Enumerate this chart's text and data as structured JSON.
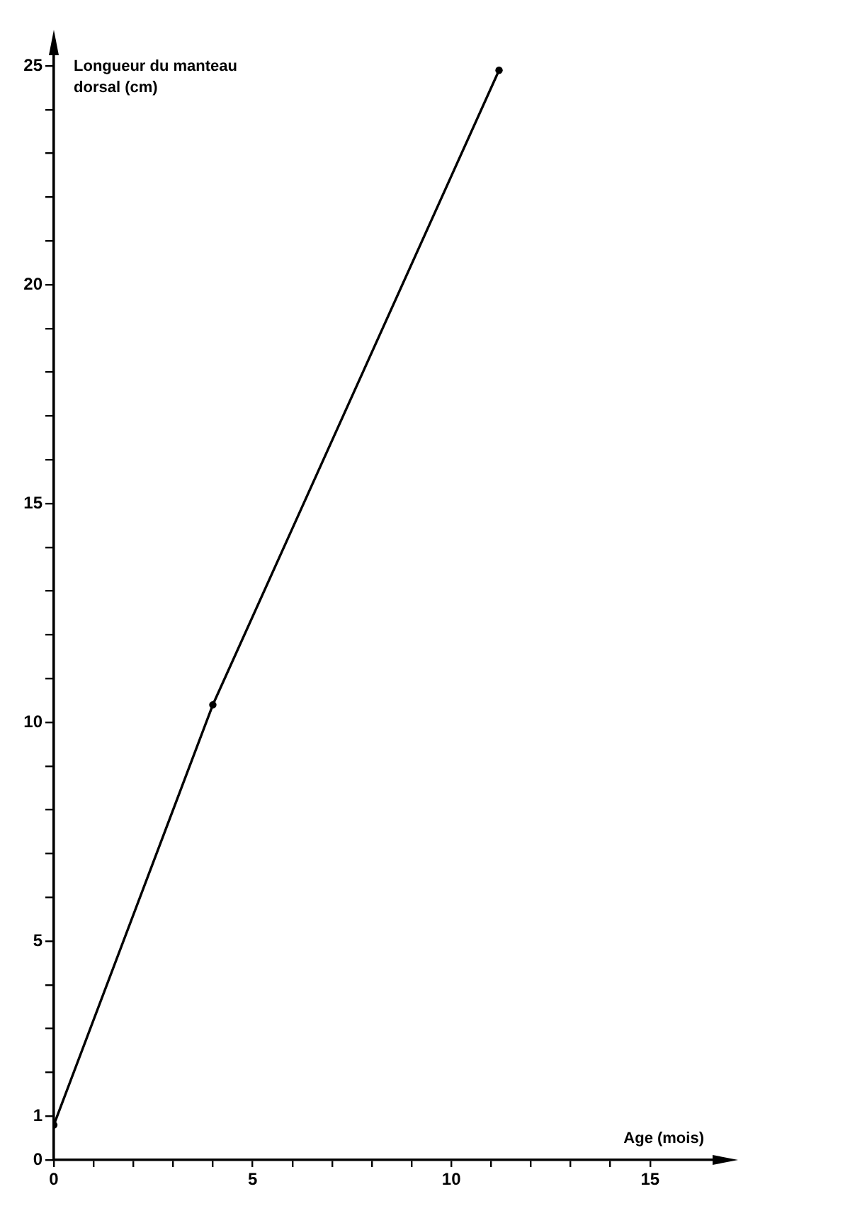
{
  "chart_data": {
    "type": "line",
    "xlabel": "Age (mois)",
    "ylabel": "Longueur du manteau dorsal (cm)",
    "x": [
      0,
      4,
      11.2
    ],
    "series": [
      {
        "color": "#000000",
        "values": [
          0.8,
          10.4,
          24.9
        ]
      }
    ],
    "xlim": [
      0,
      17
    ],
    "ylim": [
      0,
      25.6
    ],
    "xticks": [
      0,
      {
        "value": 1,
        "label": null
      },
      {
        "value": 2,
        "label": null
      },
      {
        "value": 3,
        "label": null
      },
      {
        "value": 4,
        "label": null
      },
      5,
      {
        "value": 6,
        "label": null
      },
      {
        "value": 7,
        "label": null
      },
      {
        "value": 8,
        "label": null
      },
      {
        "value": 9,
        "label": null
      },
      10,
      {
        "value": 11,
        "label": null
      },
      {
        "value": 12,
        "label": null
      },
      {
        "value": 13,
        "label": null
      },
      {
        "value": 14,
        "label": null
      },
      15
    ],
    "yticks": [
      0,
      1,
      {
        "value": 2,
        "label": null
      },
      {
        "value": 3,
        "label": null
      },
      {
        "value": 4,
        "label": null
      },
      5,
      {
        "value": 6,
        "label": null
      },
      {
        "value": 7,
        "label": null
      },
      {
        "value": 8,
        "label": null
      },
      {
        "value": 9,
        "label": null
      },
      10,
      {
        "value": 11,
        "label": null
      },
      {
        "value": 12,
        "label": null
      },
      {
        "value": 13,
        "label": null
      },
      {
        "value": 14,
        "label": null
      },
      15,
      {
        "value": 16,
        "label": null
      },
      {
        "value": 17,
        "label": null
      },
      {
        "value": 18,
        "label": null
      },
      {
        "value": 19,
        "label": null
      },
      20,
      {
        "value": 21,
        "label": null
      },
      {
        "value": 22,
        "label": null
      },
      {
        "value": 23,
        "label": null
      },
      {
        "value": 24,
        "label": null
      },
      25
    ],
    "grid": false,
    "legend": false,
    "marker": "circle",
    "line_style": "solid"
  }
}
